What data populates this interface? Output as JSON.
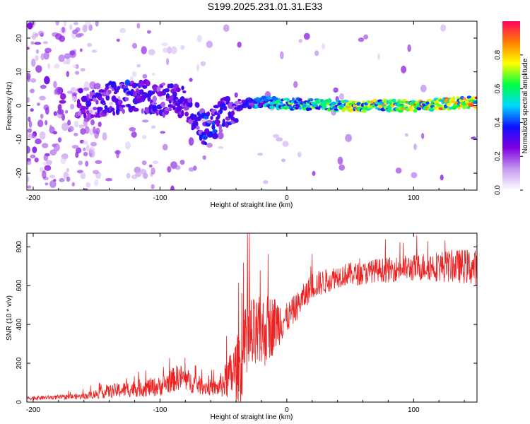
{
  "title": "S199.2025.231.01.31.E33",
  "chart_data": [
    {
      "type": "heatmap",
      "name": "spectrogram",
      "xlabel": "Height of straight line (km)",
      "ylabel": "Frequency (Hz)",
      "xlim": [
        -205,
        150
      ],
      "ylim": [
        -25,
        25
      ],
      "xticks": [
        -200,
        -100,
        0,
        100
      ],
      "yticks": [
        -20,
        -10,
        0,
        10,
        20
      ],
      "colorbar": {
        "label": "Normalized spectral amplitude",
        "range": [
          0,
          1
        ],
        "ticks": [
          0.0,
          0.2,
          0.4,
          0.6,
          0.8
        ],
        "colors": [
          "#ffffff",
          "#c49af0",
          "#8000e0",
          "#1010ff",
          "#00d8ff",
          "#00ff40",
          "#ffff00",
          "#ff8000",
          "#ff0060"
        ]
      },
      "ridge": [
        {
          "x": -160,
          "f": 1,
          "amp": 0.25
        },
        {
          "x": -140,
          "f": 2,
          "amp": 0.3
        },
        {
          "x": -120,
          "f": 3,
          "amp": 0.35
        },
        {
          "x": -100,
          "f": 2,
          "amp": 0.3
        },
        {
          "x": -80,
          "f": 1,
          "amp": 0.3
        },
        {
          "x": -65,
          "f": -7,
          "amp": 0.35
        },
        {
          "x": -55,
          "f": -4,
          "amp": 0.35
        },
        {
          "x": -40,
          "f": 0,
          "amp": 0.3
        },
        {
          "x": -20,
          "f": 1,
          "amp": 0.45
        },
        {
          "x": 0,
          "f": 0.5,
          "amp": 0.55
        },
        {
          "x": 50,
          "f": 0,
          "amp": 0.7
        },
        {
          "x": 100,
          "f": 0,
          "amp": 0.75
        },
        {
          "x": 150,
          "f": 1,
          "amp": 0.8
        }
      ]
    },
    {
      "type": "line",
      "name": "snr",
      "xlabel": "Height of straight line (km)",
      "ylabel": "SNR (10 * v/v)",
      "xlim": [
        -205,
        150
      ],
      "ylim": [
        0,
        870
      ],
      "xticks": [
        -200,
        -100,
        0,
        100
      ],
      "yticks": [
        0,
        200,
        400,
        600,
        800
      ],
      "color": "#ee2020",
      "series": [
        {
          "name": "SNR",
          "x": [
            -205,
            -180,
            -160,
            -140,
            -120,
            -100,
            -85,
            -75,
            -65,
            -55,
            -45,
            -35,
            -30,
            -25,
            -20,
            -15,
            -10,
            -5,
            0,
            10,
            20,
            30,
            40,
            50,
            60,
            70,
            80,
            90,
            100,
            110,
            120,
            130,
            140,
            150
          ],
          "y": [
            20,
            25,
            30,
            55,
            70,
            80,
            130,
            100,
            80,
            70,
            130,
            200,
            320,
            330,
            350,
            380,
            400,
            420,
            430,
            510,
            600,
            620,
            650,
            660,
            660,
            680,
            680,
            690,
            690,
            700,
            700,
            700,
            700,
            690
          ],
          "spread": [
            10,
            12,
            15,
            35,
            45,
            50,
            70,
            55,
            45,
            40,
            120,
            220,
            250,
            200,
            200,
            180,
            150,
            120,
            80,
            70,
            70,
            65,
            60,
            60,
            60,
            60,
            65,
            65,
            70,
            75,
            80,
            85,
            90,
            95
          ]
        }
      ]
    }
  ]
}
